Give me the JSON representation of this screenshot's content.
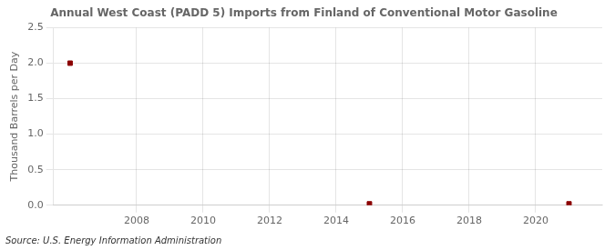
{
  "chart_data": {
    "type": "scatter",
    "title": "Annual West Coast (PADD 5) Imports from Finland of Conventional Motor Gasoline",
    "ylabel": "Thousand Barrels per Day",
    "annotation": "Source: U.S. Energy Information Administration",
    "x": [
      2006,
      2015,
      2021
    ],
    "values": [
      2.0,
      0.02,
      0.02
    ],
    "color": "#8b0000",
    "marker": "square",
    "xlim": [
      2005.5,
      2022.0
    ],
    "ylim": [
      0,
      2.5
    ],
    "xticks": [
      2008,
      2010,
      2012,
      2014,
      2016,
      2018,
      2020
    ],
    "yticks": [
      {
        "value": 0.0,
        "label": "0.0"
      },
      0.5,
      {
        "value": 1.0,
        "label": "1.0"
      },
      1.5,
      {
        "value": 2.0,
        "label": "2.0"
      },
      2.5
    ],
    "grid": true
  }
}
